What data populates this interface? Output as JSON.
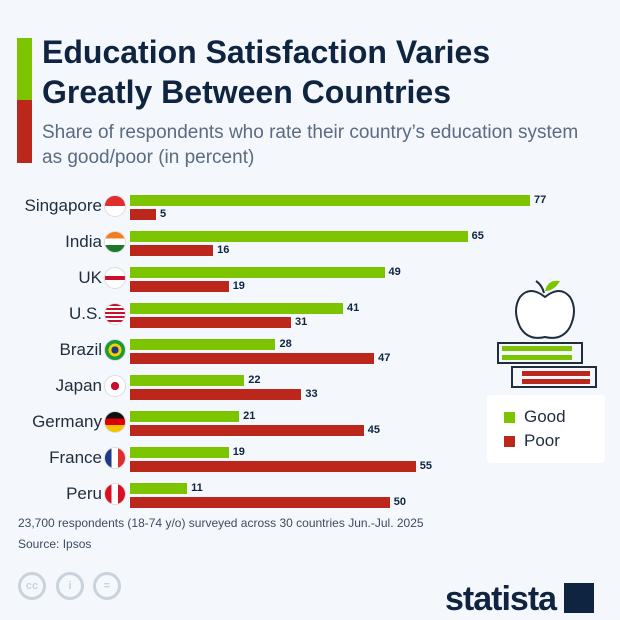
{
  "title": "Education Satisfaction Varies Greatly Between Countries",
  "subtitle": "Share of respondents who rate their country’s education system as good/poor (in percent)",
  "chart_data": {
    "type": "bar",
    "orientation": "horizontal",
    "categories": [
      "Singapore",
      "India",
      "UK",
      "U.S.",
      "Brazil",
      "Japan",
      "Germany",
      "France",
      "Peru"
    ],
    "series": [
      {
        "name": "Good",
        "color": "#7dc400",
        "values": [
          77,
          65,
          49,
          41,
          28,
          22,
          21,
          19,
          11
        ]
      },
      {
        "name": "Poor",
        "color": "#bb271a",
        "values": [
          5,
          16,
          19,
          31,
          47,
          33,
          45,
          55,
          50
        ]
      }
    ],
    "legend_position": "right",
    "grid": false
  },
  "footer": {
    "note": "23,700 respondents (18-74 y/o) surveyed across 30 countries Jun.-Jul. 2025",
    "source": "Source: Ipsos",
    "brand": "statista"
  },
  "icons": [
    "creative-commons-icon",
    "attribution-icon",
    "no-derivatives-icon",
    "apple-on-books-icon"
  ]
}
